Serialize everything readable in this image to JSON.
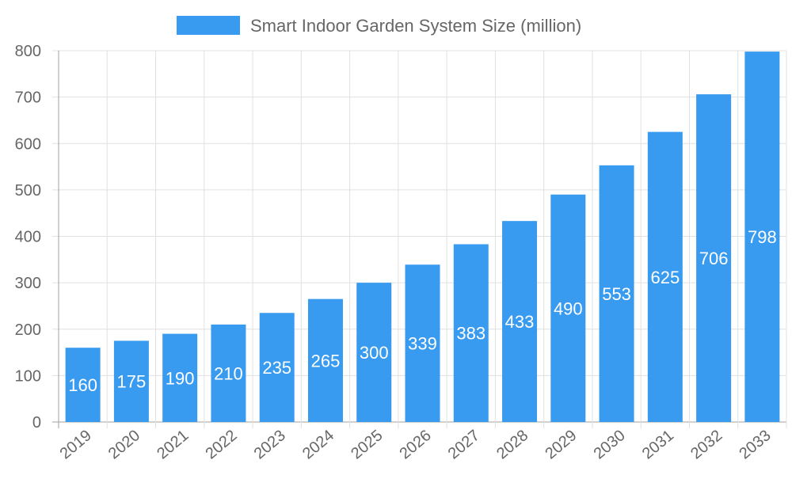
{
  "chart_data": {
    "type": "bar",
    "title": "",
    "xlabel": "",
    "ylabel": "",
    "categories": [
      "2019",
      "2020",
      "2021",
      "2022",
      "2023",
      "2024",
      "2025",
      "2026",
      "2027",
      "2028",
      "2029",
      "2030",
      "2031",
      "2032",
      "2033"
    ],
    "series": [
      {
        "name": "Smart Indoor Garden System Size (million)",
        "values": [
          160,
          175,
          190,
          210,
          235,
          265,
          300,
          339,
          383,
          433,
          490,
          553,
          625,
          706,
          798
        ]
      }
    ],
    "ylim": [
      0,
      800
    ],
    "yticks": [
      0,
      100,
      200,
      300,
      400,
      500,
      600,
      700,
      800
    ],
    "grid": true,
    "legend": "top",
    "data_labels": "inside-center",
    "colors": {
      "bar": "#389BF0",
      "grid": "#e0e0e0",
      "axis": "#a0a0a0",
      "text": "#666666",
      "label": "#ffffff"
    }
  }
}
